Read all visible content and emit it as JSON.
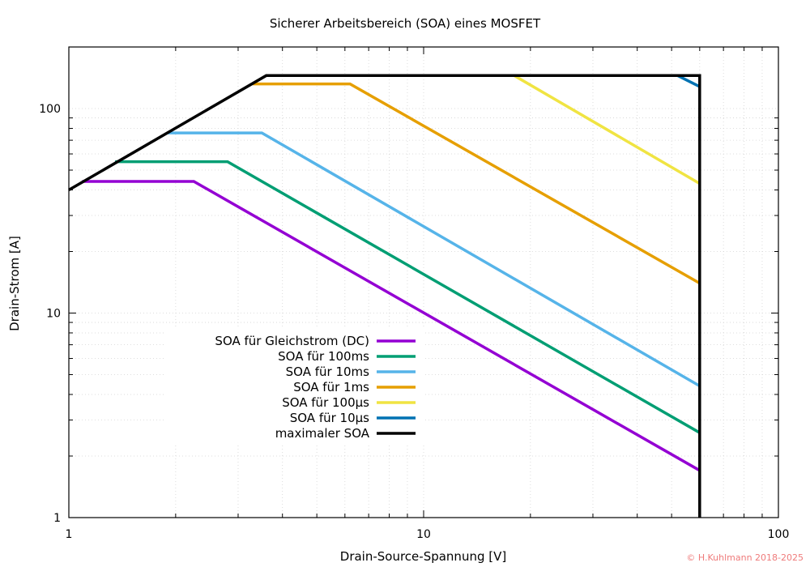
{
  "chart_data": {
    "type": "line",
    "title": "Sicherer Arbeitsbereich (SOA) eines MOSFET",
    "xlabel": "Drain-Source-Spannung [V]",
    "ylabel": "Drain-Strom [A]",
    "xscale": "log",
    "yscale": "log",
    "xlim": [
      1,
      100
    ],
    "ylim": [
      1,
      200
    ],
    "x_ticks": [
      "1",
      "10",
      "100"
    ],
    "y_ticks": [
      "1",
      "10",
      "100"
    ],
    "grid": true,
    "legend_position": "lower-left inside",
    "series": [
      {
        "name": "SOA für Gleichstrom (DC)",
        "color": "#9400d3",
        "points": [
          [
            1.09,
            44
          ],
          [
            2.25,
            44
          ],
          [
            60,
            1.7
          ]
        ]
      },
      {
        "name": "SOA für 100ms",
        "color": "#009e73",
        "points": [
          [
            1.35,
            55
          ],
          [
            2.8,
            55
          ],
          [
            60,
            2.6
          ]
        ]
      },
      {
        "name": "SOA für 10ms",
        "color": "#56b4e9",
        "points": [
          [
            1.9,
            76
          ],
          [
            3.5,
            76
          ],
          [
            60,
            4.4
          ]
        ]
      },
      {
        "name": "SOA für 1ms",
        "color": "#e69f00",
        "points": [
          [
            3.3,
            132
          ],
          [
            6.2,
            132
          ],
          [
            60,
            14
          ]
        ]
      },
      {
        "name": "SOA für 100µs",
        "color": "#f0e442",
        "points": [
          [
            18,
            145
          ],
          [
            60,
            43
          ]
        ]
      },
      {
        "name": "SOA für 10µs",
        "color": "#0072b2",
        "points": [
          [
            52,
            145
          ],
          [
            60,
            128
          ]
        ]
      },
      {
        "name": "maximaler SOA",
        "color": "#000000",
        "points": [
          [
            1,
            40
          ],
          [
            3.6,
            145
          ],
          [
            60,
            145
          ],
          [
            60,
            1
          ]
        ]
      }
    ]
  },
  "credit": "© H.Kuhlmann 2018-2025"
}
